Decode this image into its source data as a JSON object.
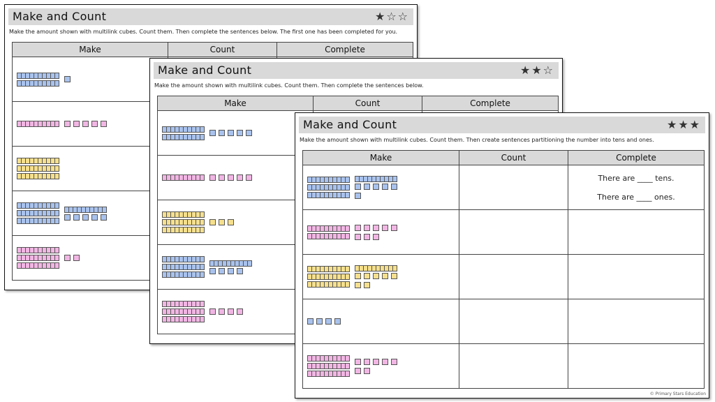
{
  "sheets": [
    {
      "title": "Make and Count",
      "stars": "★☆☆",
      "instruction": "Make the amount shown with multilink cubes. Count them. Then complete the sentences below. The first one has been completed for you.",
      "headers": [
        "Make",
        "Count",
        "Complete"
      ]
    },
    {
      "title": "Make and Count",
      "stars": "★★☆",
      "instruction": "Make the amount shown with multilink cubes. Count them. Then complete the sentences below.",
      "headers": [
        "Make",
        "Count",
        "Complete"
      ]
    },
    {
      "title": "Make and Count",
      "stars": "★★★",
      "instruction": "Make the amount shown with multilink cubes. Count them. Then create sentences partitioning the number into tens and ones.",
      "headers": [
        "Make",
        "Count",
        "Complete"
      ],
      "sentence_tens": "There are ____ tens.",
      "sentence_ones": "There are ____ ones.",
      "copyright": "© Primary Stars Education"
    }
  ],
  "colors": {
    "blue": "#a9c3ee",
    "pink": "#f2b6e4",
    "yellow": "#f6e08d"
  },
  "rows": {
    "sheet1": [
      {
        "color": "blue",
        "tens": 2,
        "ones": 1
      },
      {
        "color": "pink",
        "tens": 1,
        "ones": 5
      },
      {
        "color": "yellow",
        "tens": 3,
        "ones": 0
      },
      {
        "color": "blue",
        "tens": 4,
        "ones": 5
      },
      {
        "color": "pink",
        "tens": 3,
        "ones": 2
      }
    ],
    "sheet2": [
      {
        "color": "blue",
        "tens": 2,
        "ones": 5
      },
      {
        "color": "pink",
        "tens": 1,
        "ones": 5
      },
      {
        "color": "yellow",
        "tens": 3,
        "ones": 3
      },
      {
        "color": "blue",
        "tens": 4,
        "ones": 4
      },
      {
        "color": "pink",
        "tens": 3,
        "ones": 4
      }
    ],
    "sheet3": [
      {
        "color": "blue",
        "tens": 4,
        "ones": 6
      },
      {
        "color": "pink",
        "tens": 2,
        "ones": 8
      },
      {
        "color": "yellow",
        "tens": 4,
        "ones": 7
      },
      {
        "color": "blue",
        "tens": 0,
        "ones": 4
      },
      {
        "color": "pink",
        "tens": 3,
        "ones": 7
      }
    ]
  }
}
